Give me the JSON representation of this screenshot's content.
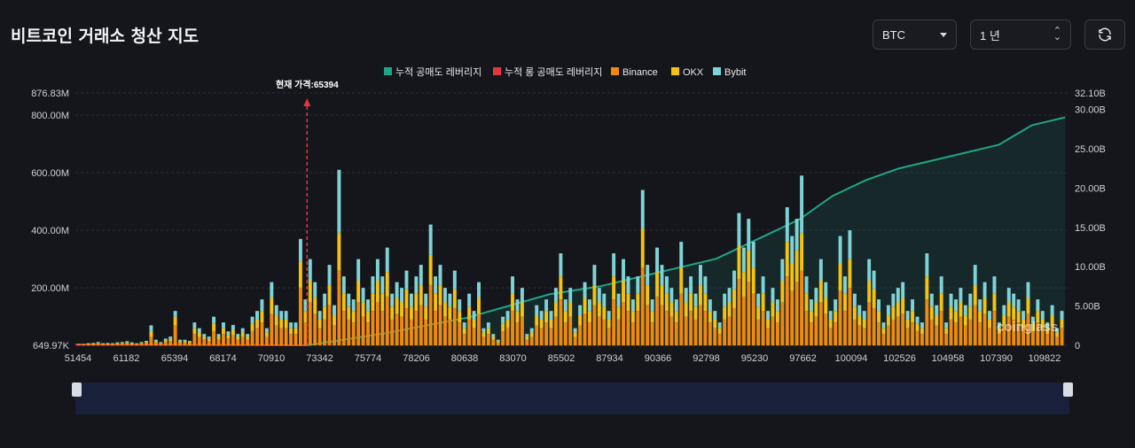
{
  "page": {
    "title": "비트코인 거래소 청산 지도",
    "symbol_select": "BTC",
    "range_select": "1 년",
    "refresh_icon": "refresh-icon"
  },
  "colors": {
    "background": "#15161b",
    "cum_short": "#1fa58a",
    "cum_long": "#e0383e",
    "binance": "#f0890f",
    "okx": "#f4c211",
    "bybit": "#7fd3d6",
    "current_price": "#e0383e"
  },
  "chart_data": {
    "type": "bar",
    "legend": [
      "누적 공매도 레버리지",
      "누적 롱 공매도 레버리지",
      "Binance",
      "OKX",
      "Bybit"
    ],
    "legend_position": "top-center",
    "current_price_label": "현재 가격:65394",
    "current_price": 65394,
    "x_range": [
      51454,
      111200
    ],
    "x_tick_labels": [
      "51454",
      "61182",
      "65394",
      "68174",
      "70910",
      "73342",
      "75774",
      "78206",
      "80638",
      "83070",
      "85502",
      "87934",
      "90366",
      "92798",
      "95230",
      "97662",
      "100094",
      "102526",
      "104958",
      "107390",
      "109822"
    ],
    "y_left_ticks": [
      "876.83M",
      "800.00M",
      "600.00M",
      "400.00M",
      "200.00M",
      "649.97K"
    ],
    "y_left_values": [
      876830000,
      800000000,
      600000000,
      400000000,
      200000000,
      649970
    ],
    "y_left_range": [
      649970,
      876830000
    ],
    "y_right_ticks": [
      "32.10B",
      "30.00B",
      "25.00B",
      "20.00B",
      "15.00B",
      "10.00B",
      "5.00B",
      "0"
    ],
    "y_right_values": [
      32.1,
      30,
      25,
      20,
      15,
      10,
      5,
      0
    ],
    "y_right_range": [
      0,
      32.1
    ],
    "grid": true,
    "series_bars": [
      {
        "name": "Binance",
        "values": [
          3,
          3,
          4,
          5,
          6,
          4,
          5,
          4,
          5,
          6,
          7,
          5,
          4,
          6,
          8,
          30,
          10,
          6,
          12,
          15,
          70,
          10,
          10,
          8,
          40,
          30,
          20,
          15,
          50,
          20,
          40,
          25,
          35,
          20,
          30,
          20,
          50,
          60,
          80,
          30,
          110,
          70,
          60,
          60,
          40,
          40,
          200,
          80,
          150,
          110,
          60,
          90,
          140,
          70,
          260,
          120,
          90,
          80,
          150,
          100,
          80,
          120,
          150,
          120,
          170,
          90,
          110,
          100,
          130,
          90,
          120,
          140,
          90,
          210,
          120,
          140,
          100,
          90,
          130,
          80,
          40,
          90,
          60,
          110,
          30,
          40,
          20,
          10,
          50,
          60,
          120,
          80,
          100,
          20,
          30,
          70,
          60,
          80,
          60,
          100,
          160,
          80,
          100,
          30,
          70,
          110,
          80,
          140,
          100,
          90,
          60,
          160,
          90,
          150,
          120,
          80,
          120,
          270,
          140,
          80,
          170,
          140,
          120,
          100,
          80,
          180,
          100,
          120,
          90,
          140,
          120,
          80,
          60,
          40,
          90,
          100,
          130,
          230,
          170,
          220,
          180,
          90,
          120,
          60,
          100,
          80,
          150,
          240,
          190,
          220,
          260,
          120,
          80,
          100,
          150,
          110,
          60,
          80,
          190,
          120,
          200,
          90,
          70,
          60,
          150,
          130,
          80,
          40,
          70,
          90,
          100,
          110,
          60,
          80,
          50,
          40,
          160,
          90,
          70,
          120,
          40,
          90,
          80,
          100,
          70,
          90,
          140,
          80,
          110,
          60,
          120,
          40,
          70,
          100,
          90,
          80,
          60,
          110,
          50,
          80,
          60,
          40,
          70,
          30,
          60
        ]
      },
      {
        "name": "OKX",
        "values": [
          1,
          1,
          2,
          2,
          3,
          2,
          2,
          2,
          3,
          3,
          4,
          3,
          2,
          3,
          4,
          20,
          5,
          3,
          6,
          8,
          30,
          5,
          5,
          4,
          20,
          15,
          10,
          8,
          25,
          10,
          20,
          12,
          18,
          10,
          15,
          10,
          25,
          30,
          40,
          15,
          55,
          35,
          30,
          30,
          20,
          20,
          90,
          40,
          75,
          55,
          30,
          45,
          70,
          35,
          130,
          60,
          45,
          40,
          75,
          50,
          40,
          60,
          75,
          60,
          85,
          45,
          55,
          50,
          65,
          45,
          60,
          70,
          45,
          105,
          60,
          70,
          50,
          45,
          65,
          40,
          20,
          45,
          30,
          55,
          15,
          20,
          10,
          5,
          25,
          30,
          60,
          40,
          50,
          10,
          15,
          35,
          30,
          40,
          30,
          50,
          80,
          40,
          50,
          15,
          35,
          55,
          40,
          70,
          50,
          45,
          30,
          80,
          45,
          75,
          60,
          40,
          60,
          135,
          70,
          40,
          85,
          70,
          60,
          50,
          40,
          90,
          50,
          60,
          45,
          70,
          60,
          40,
          30,
          20,
          45,
          50,
          65,
          115,
          85,
          110,
          90,
          45,
          60,
          30,
          50,
          40,
          75,
          120,
          95,
          110,
          130,
          60,
          40,
          50,
          75,
          55,
          30,
          40,
          95,
          60,
          100,
          45,
          35,
          30,
          75,
          65,
          40,
          20,
          35,
          45,
          50,
          55,
          30,
          40,
          25,
          20,
          80,
          45,
          35,
          60,
          20,
          45,
          40,
          50,
          35,
          45,
          70,
          40,
          55,
          30,
          60,
          20,
          35,
          50,
          45,
          40,
          30,
          55,
          25,
          40,
          30,
          20,
          35,
          15,
          30
        ]
      },
      {
        "name": "Bybit",
        "values": [
          1,
          1,
          2,
          2,
          3,
          2,
          2,
          2,
          3,
          3,
          4,
          3,
          2,
          3,
          4,
          20,
          5,
          3,
          6,
          8,
          20,
          5,
          5,
          4,
          20,
          15,
          10,
          8,
          25,
          10,
          20,
          12,
          18,
          10,
          15,
          10,
          25,
          30,
          40,
          15,
          55,
          35,
          30,
          30,
          20,
          20,
          80,
          40,
          75,
          55,
          30,
          45,
          70,
          35,
          220,
          60,
          45,
          40,
          75,
          50,
          40,
          60,
          75,
          60,
          85,
          45,
          55,
          50,
          65,
          45,
          60,
          70,
          45,
          105,
          60,
          70,
          50,
          45,
          65,
          40,
          20,
          45,
          30,
          55,
          15,
          20,
          10,
          5,
          25,
          30,
          60,
          40,
          50,
          10,
          15,
          35,
          30,
          40,
          30,
          50,
          80,
          40,
          50,
          15,
          35,
          55,
          40,
          70,
          50,
          45,
          30,
          80,
          45,
          75,
          60,
          40,
          60,
          135,
          70,
          40,
          85,
          70,
          60,
          50,
          40,
          90,
          50,
          60,
          45,
          70,
          60,
          40,
          30,
          20,
          45,
          50,
          65,
          115,
          85,
          110,
          90,
          45,
          60,
          30,
          50,
          40,
          75,
          120,
          95,
          110,
          200,
          60,
          40,
          50,
          75,
          55,
          30,
          40,
          95,
          60,
          100,
          45,
          35,
          30,
          75,
          65,
          40,
          20,
          35,
          45,
          50,
          55,
          30,
          40,
          25,
          20,
          80,
          45,
          35,
          60,
          20,
          45,
          40,
          50,
          35,
          45,
          70,
          40,
          55,
          30,
          60,
          20,
          35,
          50,
          45,
          40,
          30,
          55,
          25,
          40,
          30,
          20,
          35,
          15,
          30
        ]
      }
    ],
    "cum_short_points": [
      [
        65394,
        0
      ],
      [
        70000,
        1.5
      ],
      [
        75000,
        3.5
      ],
      [
        80000,
        6.5
      ],
      [
        83000,
        7.5
      ],
      [
        87000,
        9.5
      ],
      [
        90000,
        11
      ],
      [
        93000,
        14
      ],
      [
        95000,
        16
      ],
      [
        97000,
        19
      ],
      [
        99000,
        21
      ],
      [
        101000,
        22.5
      ],
      [
        103000,
        23.5
      ],
      [
        105000,
        24.5
      ],
      [
        107000,
        25.5
      ],
      [
        109000,
        28
      ],
      [
        111000,
        29
      ]
    ],
    "cum_long_points": [
      [
        51454,
        0.1
      ],
      [
        65394,
        0
      ]
    ]
  }
}
